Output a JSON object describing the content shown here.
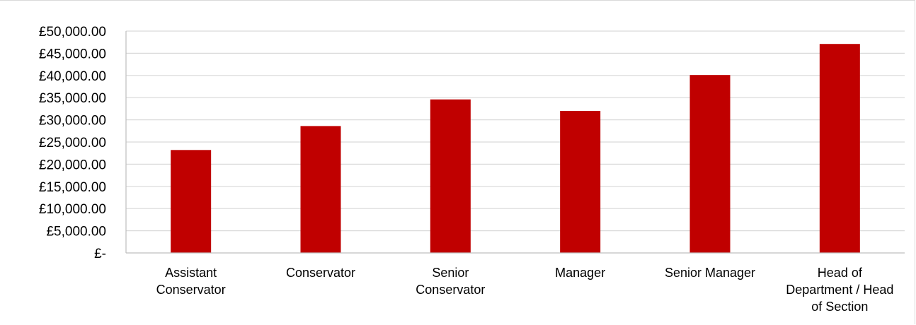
{
  "chart_data": {
    "type": "bar",
    "title": "",
    "xlabel": "",
    "ylabel": "",
    "categories": [
      [
        "Assistant",
        "Conservator"
      ],
      [
        "Conservator"
      ],
      [
        "Senior",
        "Conservator"
      ],
      [
        "Manager"
      ],
      [
        "Senior Manager"
      ],
      [
        "Head of",
        "Department / Head",
        "of Section"
      ]
    ],
    "values": [
      23200,
      28600,
      34600,
      32000,
      40100,
      47100
    ],
    "ylim": [
      0,
      50000
    ],
    "yticks": [
      0,
      5000,
      10000,
      15000,
      20000,
      25000,
      30000,
      35000,
      40000,
      45000,
      50000
    ],
    "ytick_labels": [
      "£-",
      "£5,000.00",
      "£10,000.00",
      "£15,000.00",
      "£20,000.00",
      "£25,000.00",
      "£30,000.00",
      "£35,000.00",
      "£40,000.00",
      "£45,000.00",
      "£50,000.00"
    ],
    "grid": true,
    "legend": "none",
    "bar_color": "#c00000",
    "grid_color": "#d9d9d9",
    "axis_color": "#bfbfbf"
  }
}
